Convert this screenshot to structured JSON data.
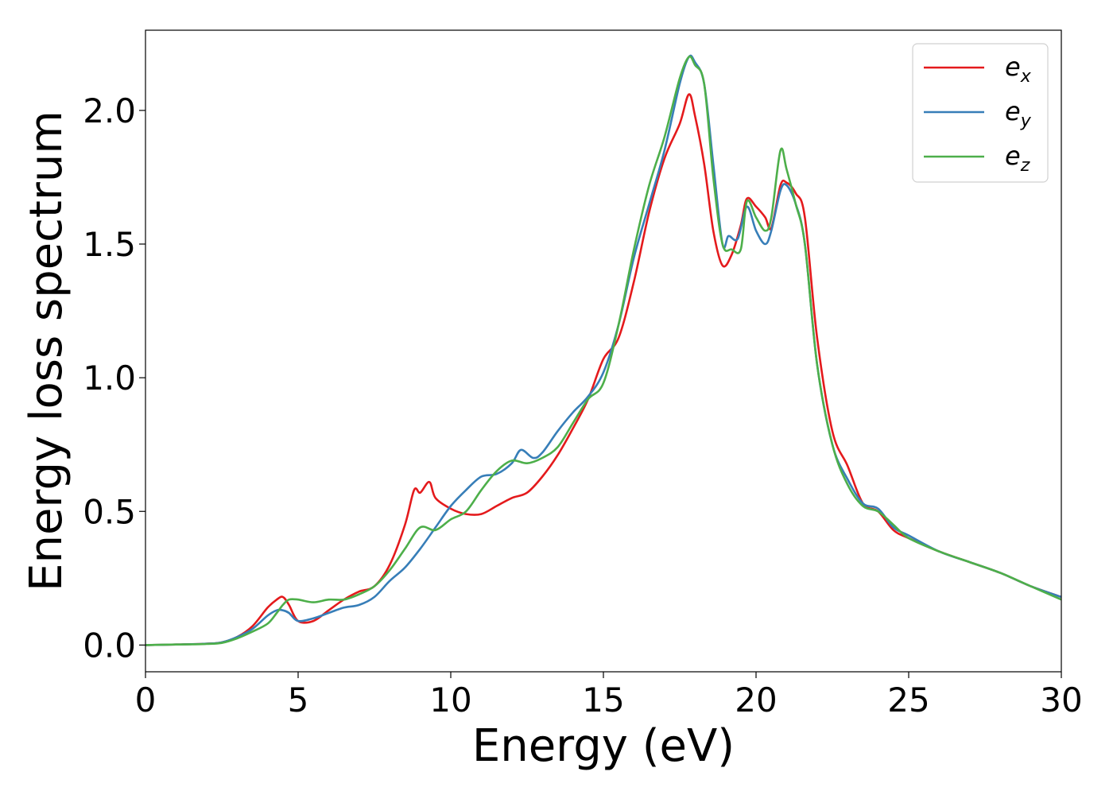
{
  "chart_data": {
    "type": "line",
    "xlabel": "Energy (eV)",
    "ylabel": "Energy loss spectrum",
    "xlim": [
      0,
      30
    ],
    "ylim": [
      -0.1,
      2.3
    ],
    "xticks": [
      0,
      5,
      10,
      15,
      20,
      25,
      30
    ],
    "xtick_labels": [
      "0",
      "5",
      "10",
      "15",
      "20",
      "25",
      "30"
    ],
    "yticks": [
      0.0,
      0.5,
      1.0,
      1.5,
      2.0
    ],
    "ytick_labels": [
      "0.0",
      "0.5",
      "1.0",
      "1.5",
      "2.0"
    ],
    "grid": false,
    "legend_position": "top-right",
    "series": [
      {
        "name": "e",
        "subscript": "x",
        "color": "#e41a1c",
        "x": [
          0,
          1,
          2,
          2.5,
          3,
          3.5,
          4,
          4.3,
          4.5,
          4.7,
          5,
          5.5,
          6,
          6.5,
          7,
          7.5,
          8,
          8.5,
          8.8,
          9,
          9.3,
          9.5,
          10,
          10.5,
          11,
          11.5,
          12,
          12.5,
          13,
          13.5,
          14,
          14.5,
          15,
          15.5,
          16,
          16.5,
          17,
          17.5,
          17.8,
          18,
          18.3,
          18.6,
          18.9,
          19.2,
          19.5,
          19.7,
          20,
          20.3,
          20.5,
          20.8,
          21,
          21.3,
          21.6,
          22,
          22.5,
          23,
          23.5,
          24,
          24.5,
          25,
          26,
          27,
          28,
          29,
          30
        ],
        "y": [
          0,
          0.002,
          0.005,
          0.01,
          0.03,
          0.07,
          0.14,
          0.17,
          0.18,
          0.15,
          0.09,
          0.09,
          0.13,
          0.17,
          0.2,
          0.22,
          0.3,
          0.45,
          0.58,
          0.57,
          0.61,
          0.55,
          0.51,
          0.49,
          0.49,
          0.52,
          0.55,
          0.57,
          0.63,
          0.71,
          0.81,
          0.92,
          1.07,
          1.15,
          1.36,
          1.62,
          1.82,
          1.95,
          2.06,
          1.98,
          1.8,
          1.55,
          1.42,
          1.46,
          1.57,
          1.67,
          1.64,
          1.6,
          1.56,
          1.72,
          1.73,
          1.69,
          1.6,
          1.15,
          0.8,
          0.67,
          0.53,
          0.5,
          0.43,
          0.4,
          0.35,
          0.31,
          0.27,
          0.22,
          0.18
        ]
      },
      {
        "name": "e",
        "subscript": "y",
        "color": "#377eb8",
        "x": [
          0,
          1,
          2,
          2.5,
          3,
          3.5,
          4,
          4.3,
          4.5,
          4.7,
          5,
          5.5,
          6,
          6.5,
          7,
          7.5,
          8,
          8.5,
          9,
          9.5,
          10,
          10.5,
          11,
          11.5,
          12,
          12.3,
          12.7,
          13,
          13.5,
          14,
          14.5,
          15,
          15.5,
          16,
          16.5,
          17,
          17.5,
          17.8,
          18,
          18.3,
          18.6,
          18.9,
          19.1,
          19.4,
          19.7,
          20,
          20.3,
          20.5,
          20.8,
          21,
          21.3,
          21.6,
          22,
          22.5,
          23,
          23.5,
          24,
          24.5,
          25,
          26,
          27,
          28,
          29,
          30
        ],
        "y": [
          0,
          0.002,
          0.005,
          0.01,
          0.03,
          0.06,
          0.11,
          0.13,
          0.13,
          0.12,
          0.09,
          0.1,
          0.12,
          0.14,
          0.15,
          0.18,
          0.24,
          0.29,
          0.36,
          0.44,
          0.52,
          0.58,
          0.63,
          0.64,
          0.68,
          0.73,
          0.7,
          0.72,
          0.8,
          0.87,
          0.93,
          1.02,
          1.2,
          1.45,
          1.65,
          1.85,
          2.1,
          2.2,
          2.18,
          2.1,
          1.8,
          1.5,
          1.53,
          1.52,
          1.64,
          1.55,
          1.5,
          1.55,
          1.7,
          1.72,
          1.65,
          1.5,
          1.05,
          0.75,
          0.62,
          0.53,
          0.51,
          0.44,
          0.41,
          0.35,
          0.31,
          0.27,
          0.22,
          0.18
        ]
      },
      {
        "name": "e",
        "subscript": "z",
        "color": "#4daf4a",
        "x": [
          0,
          1,
          2,
          2.5,
          3,
          3.5,
          4,
          4.3,
          4.5,
          4.7,
          5,
          5.5,
          6,
          6.5,
          7,
          7.5,
          8,
          8.5,
          9,
          9.5,
          10,
          10.5,
          11,
          11.5,
          12,
          12.5,
          13,
          13.5,
          14,
          14.5,
          15,
          15.5,
          16,
          16.5,
          17,
          17.5,
          17.8,
          18,
          18.3,
          18.6,
          18.9,
          19.2,
          19.5,
          19.7,
          20,
          20.3,
          20.5,
          20.8,
          21,
          21.3,
          21.6,
          22,
          22.5,
          23,
          23.5,
          24,
          24.5,
          25,
          26,
          27,
          28,
          29,
          30
        ],
        "y": [
          0,
          0.002,
          0.004,
          0.008,
          0.025,
          0.05,
          0.08,
          0.12,
          0.15,
          0.17,
          0.17,
          0.16,
          0.17,
          0.17,
          0.19,
          0.22,
          0.28,
          0.36,
          0.44,
          0.43,
          0.47,
          0.5,
          0.58,
          0.65,
          0.69,
          0.68,
          0.7,
          0.74,
          0.83,
          0.92,
          0.98,
          1.2,
          1.48,
          1.72,
          1.9,
          2.12,
          2.2,
          2.17,
          2.1,
          1.75,
          1.5,
          1.48,
          1.48,
          1.66,
          1.6,
          1.55,
          1.6,
          1.85,
          1.78,
          1.65,
          1.5,
          1.05,
          0.75,
          0.6,
          0.52,
          0.5,
          0.45,
          0.4,
          0.35,
          0.31,
          0.27,
          0.22,
          0.17
        ]
      }
    ]
  }
}
